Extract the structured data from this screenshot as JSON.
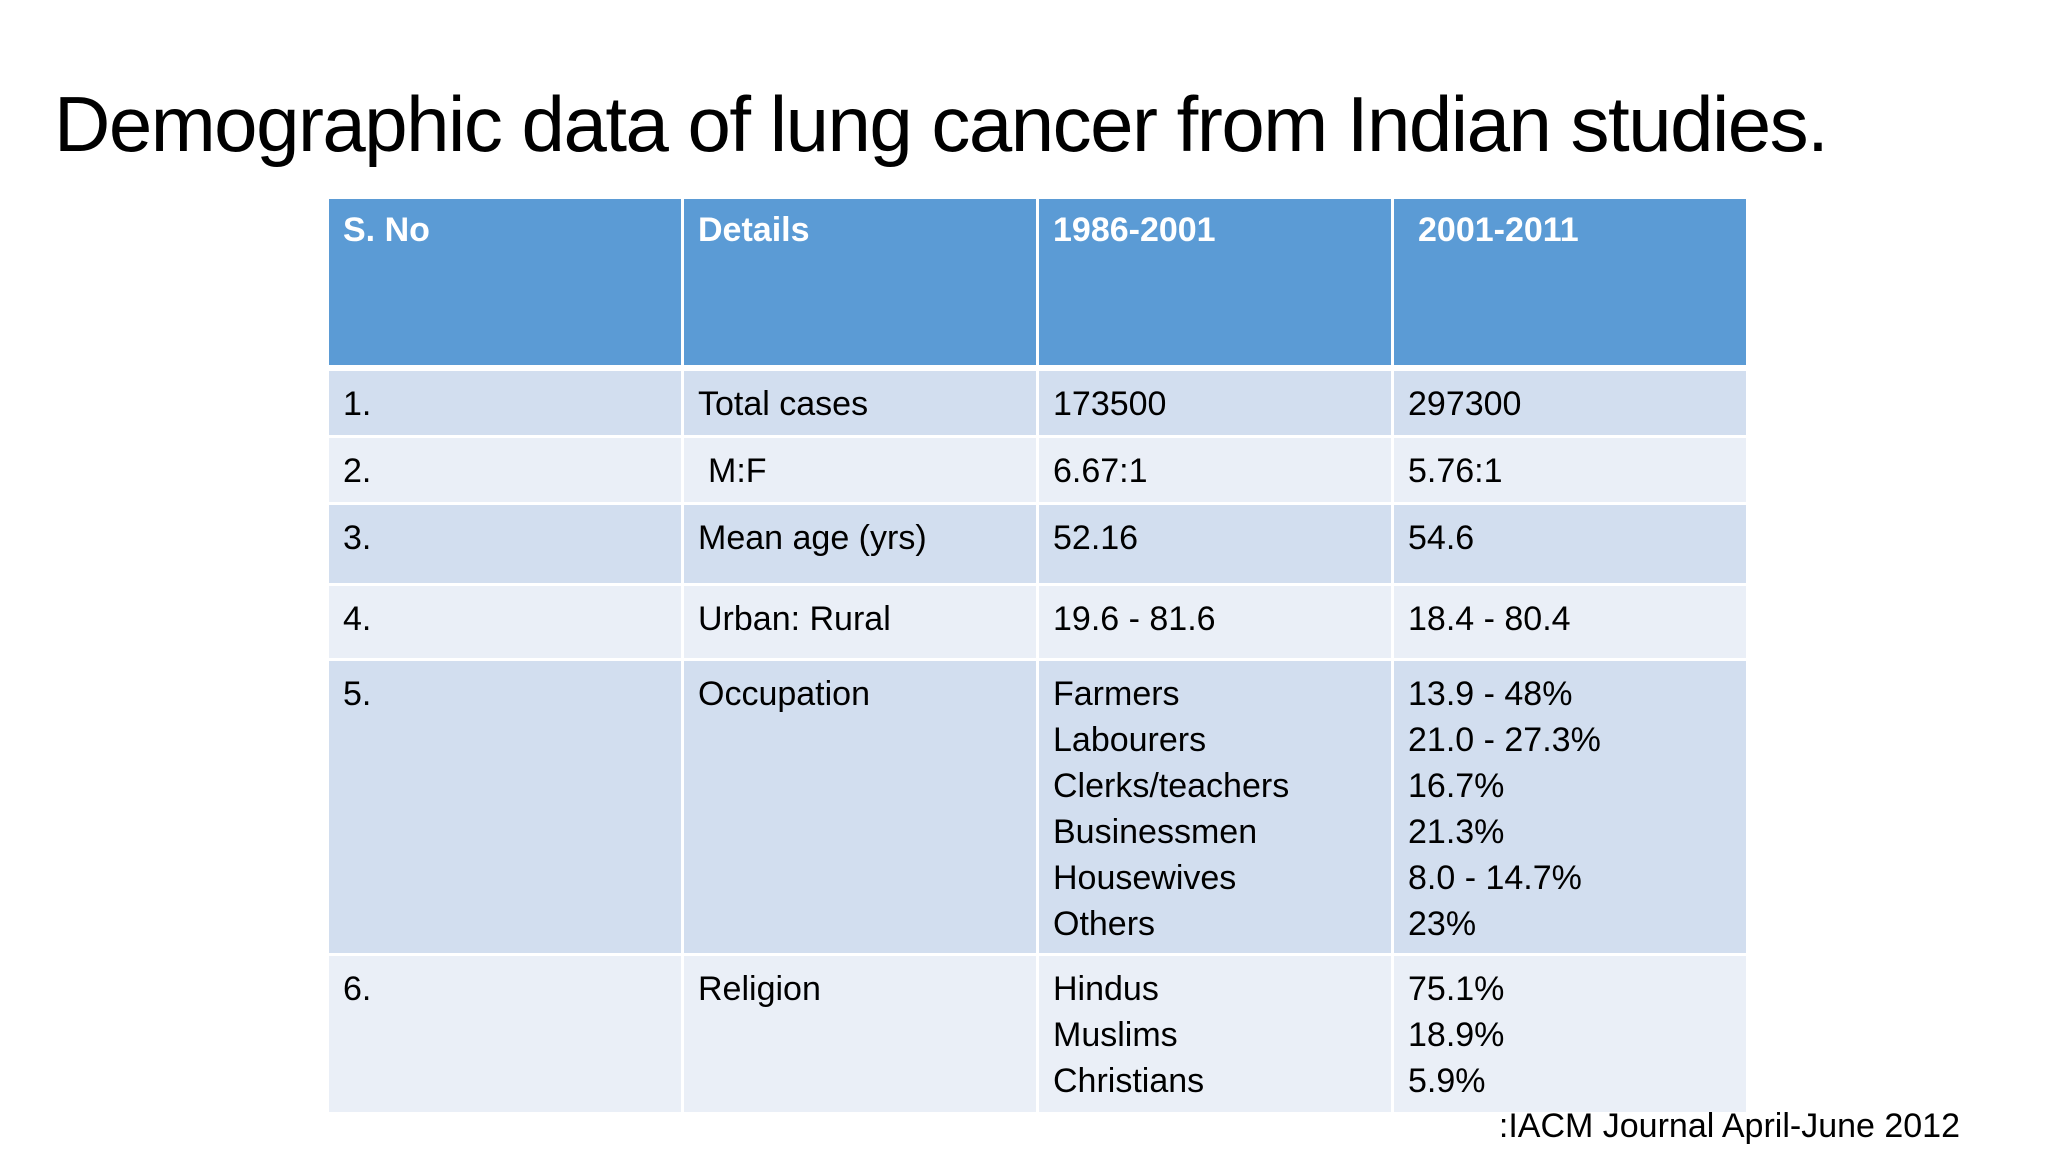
{
  "title": "Demographic data of lung cancer from Indian studies.",
  "table": {
    "headers": [
      "S. No",
      "Details",
      "1986-2001",
      "2001-2011"
    ],
    "rows": [
      {
        "sno": "1.",
        "details": "Total cases",
        "p1": [
          "173500"
        ],
        "p2": [
          "297300"
        ]
      },
      {
        "sno": "2.",
        "details": "M:F",
        "p1": [
          "6.67:1"
        ],
        "p2": [
          "5.76:1"
        ]
      },
      {
        "sno": "3.",
        "details": "Mean age (yrs)",
        "p1": [
          "52.16"
        ],
        "p2": [
          "54.6"
        ]
      },
      {
        "sno": "4.",
        "details": "Urban: Rural",
        "p1": [
          "19.6 - 81.6"
        ],
        "p2": [
          "18.4 - 80.4"
        ]
      },
      {
        "sno": "5.",
        "details": "Occupation",
        "p1": [
          "Farmers",
          "Labourers",
          "Clerks/teachers",
          "Businessmen",
          "Housewives",
          "Others"
        ],
        "p2": [
          "13.9 - 48%",
          "21.0 - 27.3%",
          "16.7%",
          "21.3%",
          "8.0 - 14.7%",
          "23%"
        ]
      },
      {
        "sno": "6.",
        "details": "Religion",
        "p1": [
          "Hindus",
          "Muslims",
          "Christians"
        ],
        "p2": [
          "75.1%",
          "18.9%",
          "5.9%"
        ]
      }
    ]
  },
  "source": ":IACM Journal April-June 2012",
  "colors": {
    "header_bg": "#5b9bd5",
    "row_odd_bg": "#d2deef",
    "row_even_bg": "#eaeff7"
  }
}
